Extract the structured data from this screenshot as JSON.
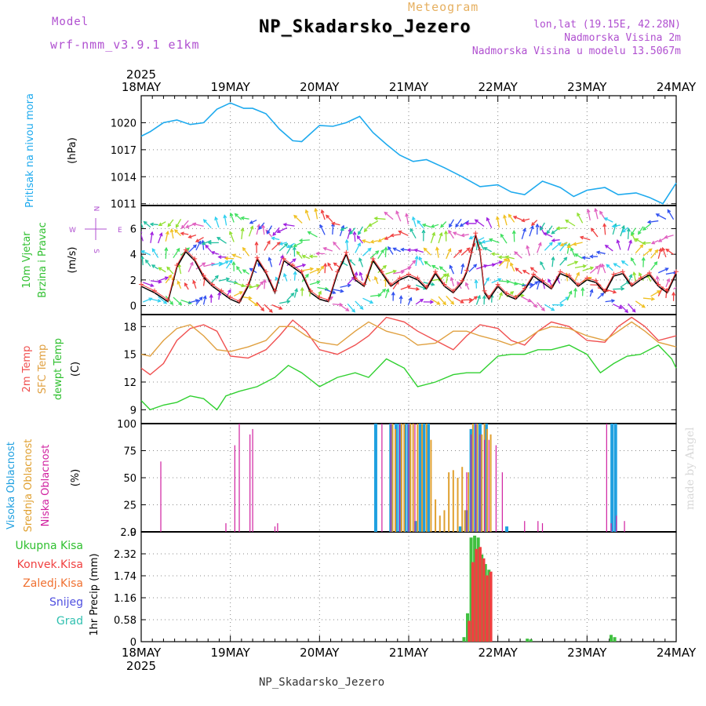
{
  "header": {
    "model_label": "Model",
    "model_name": "wrf-nmm_v3.9.1 e1km",
    "title": "Meteogram",
    "station": "NP_Skadarsko_Jezero",
    "coords": "lon,lat (19.15E, 42.28N)",
    "elevation": "Nadmorska Visina 2m",
    "model_elevation": "Nadmorska Visina u modelu 13.5067m"
  },
  "footer": {
    "station": "NP_Skadarsko_Jezero",
    "credit": "made by Angel"
  },
  "colors": {
    "pressure": "#1eaaee",
    "temp2m": "#f05050",
    "sfc": "#e0a040",
    "dew": "#30d030",
    "high_cloud": "#20a0e0",
    "mid_cloud": "#e0a030",
    "low_cloud": "#d020a0",
    "total_precip": "#40c040",
    "conv_precip": "#f04040"
  },
  "chart_data": [
    {
      "type": "line",
      "panel": "pressure",
      "title": "",
      "xlabel": "",
      "ylabel": "Pritisak na nivou mora",
      "unit": "(hPa)",
      "year_label": "2025",
      "x_ticks": [
        "18MAY",
        "19MAY",
        "20MAY",
        "21MAY",
        "22MAY",
        "23MAY",
        "24MAY"
      ],
      "y_ticks": [
        1011,
        1014,
        1017,
        1020
      ],
      "ylim": [
        1010.8,
        1023.0
      ],
      "xlim_days": [
        18,
        24
      ],
      "series": [
        {
          "name": "Pritisak na nivou mora",
          "x": [
            18.0,
            18.1,
            18.25,
            18.4,
            18.55,
            18.7,
            18.85,
            19.0,
            19.15,
            19.25,
            19.4,
            19.55,
            19.7,
            19.8,
            20.0,
            20.15,
            20.3,
            20.45,
            20.6,
            20.75,
            20.9,
            21.05,
            21.2,
            21.4,
            21.6,
            21.8,
            22.0,
            22.15,
            22.3,
            22.5,
            22.7,
            22.85,
            23.0,
            23.2,
            23.35,
            23.55,
            23.7,
            23.85,
            24.0
          ],
          "y": [
            1018.5,
            1019.0,
            1020.0,
            1020.3,
            1019.8,
            1020.0,
            1021.5,
            1022.2,
            1021.6,
            1021.6,
            1021.0,
            1019.3,
            1018.0,
            1017.9,
            1019.7,
            1019.6,
            1020.0,
            1020.7,
            1018.9,
            1017.6,
            1016.4,
            1015.7,
            1015.9,
            1015.0,
            1014.0,
            1012.9,
            1013.1,
            1012.3,
            1012.0,
            1013.5,
            1012.8,
            1011.8,
            1012.5,
            1012.8,
            1012.0,
            1012.2,
            1011.7,
            1011.0,
            1013.3
          ]
        }
      ]
    },
    {
      "type": "line",
      "panel": "wind",
      "title": "",
      "xlabel": "",
      "ylabel": "10m Vjetar Brzina i Pravac",
      "unit": "(m/s)",
      "compass": {
        "n": "N",
        "s": "S",
        "w": "W",
        "e": "E"
      },
      "y_ticks": [
        0,
        2,
        4,
        6
      ],
      "ylim": [
        -0.7,
        7.8
      ],
      "series": [
        {
          "name": "10m Vjetar",
          "x": [
            18.0,
            18.15,
            18.3,
            18.4,
            18.5,
            18.6,
            18.7,
            18.8,
            18.9,
            19.0,
            19.1,
            19.2,
            19.3,
            19.4,
            19.5,
            19.6,
            19.7,
            19.8,
            19.9,
            20.0,
            20.1,
            20.2,
            20.3,
            20.4,
            20.5,
            20.6,
            20.7,
            20.8,
            20.9,
            21.0,
            21.1,
            21.2,
            21.3,
            21.4,
            21.5,
            21.6,
            21.65,
            21.7,
            21.75,
            21.8,
            21.85,
            21.9,
            22.0,
            22.1,
            22.2,
            22.3,
            22.4,
            22.5,
            22.6,
            22.7,
            22.8,
            22.9,
            23.0,
            23.1,
            23.2,
            23.3,
            23.4,
            23.5,
            23.6,
            23.7,
            23.8,
            23.9,
            24.0
          ],
          "y": [
            1.5,
            1.0,
            0.3,
            3.0,
            4.2,
            3.5,
            2.2,
            1.5,
            1.0,
            0.5,
            0.2,
            1.5,
            3.6,
            2.5,
            1.0,
            3.5,
            3.0,
            2.5,
            1.0,
            0.5,
            0.3,
            2.5,
            4.0,
            2.0,
            1.5,
            3.5,
            2.5,
            1.5,
            2.0,
            2.3,
            2.0,
            1.3,
            2.5,
            1.5,
            1.0,
            1.8,
            2.6,
            4.0,
            5.5,
            4.2,
            1.0,
            0.5,
            1.5,
            0.8,
            0.5,
            1.2,
            2.3,
            1.8,
            1.3,
            2.5,
            2.2,
            1.5,
            2.0,
            1.8,
            1.0,
            2.3,
            2.5,
            1.5,
            2.0,
            2.4,
            1.5,
            1.0,
            2.5
          ]
        }
      ]
    },
    {
      "type": "line",
      "panel": "temperature",
      "title": "",
      "xlabel": "",
      "ylabels": [
        "2m Temp",
        "SFC Temp",
        "dewpt Temp"
      ],
      "unit": "(C)",
      "y_ticks": [
        9,
        12,
        15,
        18
      ],
      "ylim": [
        7.5,
        19.3
      ],
      "series": [
        {
          "name": "2m Temp",
          "x": [
            18.0,
            18.1,
            18.25,
            18.4,
            18.55,
            18.7,
            18.85,
            19.0,
            19.2,
            19.4,
            19.55,
            19.7,
            19.85,
            20.0,
            20.2,
            20.4,
            20.55,
            20.75,
            20.95,
            21.1,
            21.3,
            21.5,
            21.65,
            21.8,
            22.0,
            22.15,
            22.3,
            22.45,
            22.6,
            22.8,
            23.0,
            23.2,
            23.35,
            23.5,
            23.65,
            23.8,
            24.0
          ],
          "y": [
            13.5,
            12.8,
            14.0,
            16.5,
            17.8,
            18.2,
            17.5,
            14.8,
            14.6,
            15.5,
            17.0,
            18.7,
            17.5,
            15.5,
            15.0,
            16.0,
            17.0,
            19.0,
            18.5,
            17.5,
            16.5,
            15.5,
            17.0,
            18.2,
            17.8,
            16.5,
            16.0,
            17.5,
            18.5,
            18.0,
            16.5,
            16.3,
            18.0,
            19.0,
            18.0,
            16.5,
            17.0
          ]
        },
        {
          "name": "SFC Temp",
          "x": [
            18.0,
            18.1,
            18.25,
            18.4,
            18.55,
            18.7,
            18.85,
            19.0,
            19.2,
            19.4,
            19.55,
            19.7,
            19.85,
            20.0,
            20.2,
            20.4,
            20.55,
            20.75,
            20.95,
            21.1,
            21.3,
            21.5,
            21.65,
            21.8,
            22.0,
            22.15,
            22.3,
            22.45,
            22.6,
            22.8,
            23.0,
            23.2,
            23.35,
            23.5,
            23.65,
            23.8,
            24.0
          ],
          "y": [
            15.0,
            14.8,
            16.5,
            17.8,
            18.2,
            17.0,
            15.5,
            15.3,
            15.8,
            16.5,
            18.0,
            18.0,
            17.0,
            16.3,
            16.0,
            17.5,
            18.5,
            17.5,
            17.0,
            16.0,
            16.2,
            17.5,
            17.5,
            17.0,
            16.5,
            16.0,
            16.5,
            17.5,
            18.0,
            17.8,
            17.0,
            16.5,
            17.5,
            18.5,
            17.5,
            16.3,
            15.8
          ]
        },
        {
          "name": "dewpt Temp",
          "x": [
            18.0,
            18.1,
            18.25,
            18.4,
            18.55,
            18.7,
            18.85,
            18.95,
            19.1,
            19.3,
            19.5,
            19.65,
            19.8,
            20.0,
            20.2,
            20.4,
            20.55,
            20.75,
            20.95,
            21.1,
            21.3,
            21.5,
            21.65,
            21.8,
            22.0,
            22.15,
            22.3,
            22.45,
            22.6,
            22.8,
            23.0,
            23.15,
            23.3,
            23.45,
            23.6,
            23.8,
            23.95,
            24.0
          ],
          "y": [
            10.0,
            9.0,
            9.5,
            9.8,
            10.5,
            10.2,
            9.0,
            10.5,
            11.0,
            11.5,
            12.5,
            13.8,
            13.0,
            11.5,
            12.5,
            13.0,
            12.5,
            14.5,
            13.5,
            11.5,
            12.0,
            12.8,
            13.0,
            13.0,
            14.8,
            15.0,
            15.0,
            15.5,
            15.5,
            16.0,
            15.0,
            13.0,
            14.0,
            14.8,
            15.0,
            16.0,
            14.5,
            13.5
          ]
        }
      ]
    },
    {
      "type": "bar",
      "panel": "cloud",
      "title": "",
      "xlabel": "",
      "ylabels": [
        "Visoka Oblacnost",
        "Srednja Oblacnost",
        "Niska Oblacnost"
      ],
      "unit": "(%)",
      "y_ticks": [
        0,
        25,
        50,
        75,
        100
      ],
      "ylim": [
        0,
        100
      ],
      "series": [
        {
          "name": "Visoka Oblacnost",
          "x": [
            20.63,
            20.8,
            20.86,
            20.9,
            20.96,
            21.0,
            21.08,
            21.13,
            21.17,
            21.22,
            21.58,
            21.65,
            21.7,
            21.75,
            21.8,
            21.87,
            22.1,
            23.28,
            23.32
          ],
          "y": [
            100,
            100,
            100,
            100,
            100,
            100,
            10,
            100,
            100,
            100,
            5,
            20,
            95,
            100,
            100,
            100,
            5,
            100,
            100
          ]
        },
        {
          "name": "Srednja Oblacnost",
          "x": [
            20.82,
            20.85,
            20.92,
            20.95,
            21.02,
            21.05,
            21.1,
            21.15,
            21.2,
            21.25,
            21.3,
            21.35,
            21.4,
            21.45,
            21.5,
            21.55,
            21.6,
            21.63,
            21.67,
            21.72,
            21.77,
            21.82,
            21.85,
            21.88,
            21.92
          ],
          "y": [
            100,
            95,
            100,
            100,
            100,
            100,
            100,
            100,
            100,
            85,
            30,
            15,
            20,
            55,
            57,
            50,
            60,
            20,
            55,
            100,
            100,
            90,
            100,
            95,
            90
          ]
        },
        {
          "name": "Niska Oblacnost",
          "x": [
            18.22,
            18.95,
            19.05,
            19.1,
            19.22,
            19.25,
            19.5,
            19.53,
            20.7,
            20.8,
            20.9,
            21.0,
            21.07,
            21.65,
            21.7,
            21.75,
            21.8,
            21.85,
            21.9,
            21.98,
            22.05,
            22.3,
            22.45,
            22.5,
            23.22,
            23.27,
            23.33,
            23.42
          ],
          "y": [
            65,
            8,
            80,
            100,
            90,
            95,
            5,
            8,
            100,
            100,
            100,
            100,
            100,
            55,
            90,
            100,
            90,
            85,
            85,
            80,
            55,
            10,
            10,
            8,
            100,
            8,
            15,
            10
          ]
        }
      ]
    },
    {
      "type": "bar",
      "panel": "precip",
      "title": "",
      "xlabel": "",
      "ylabels": [
        "Ukupna Kisa",
        "Konvek.Kisa",
        "Zaledj.Kisa",
        "Snijeg",
        "Grad"
      ],
      "unit": "1hr Precip (mm)",
      "y_ticks": [
        0,
        0.58,
        1.16,
        1.74,
        2.32,
        2.9
      ],
      "ylim": [
        0,
        2.9
      ],
      "series": [
        {
          "name": "Ukupna Kisa",
          "x": [
            21.62,
            21.66,
            21.7,
            21.74,
            21.78,
            21.82,
            21.86,
            21.9,
            22.33,
            22.37,
            23.27,
            23.31
          ],
          "y": [
            0.12,
            0.75,
            2.75,
            2.8,
            2.75,
            2.3,
            2.05,
            1.9,
            0.08,
            0.06,
            0.18,
            0.12
          ]
        },
        {
          "name": "Konvek.Kisa",
          "x": [
            21.68,
            21.72,
            21.76,
            21.8,
            21.84,
            21.88,
            21.92
          ],
          "y": [
            0.55,
            2.1,
            2.45,
            2.5,
            2.2,
            1.75,
            1.85
          ]
        }
      ]
    }
  ]
}
